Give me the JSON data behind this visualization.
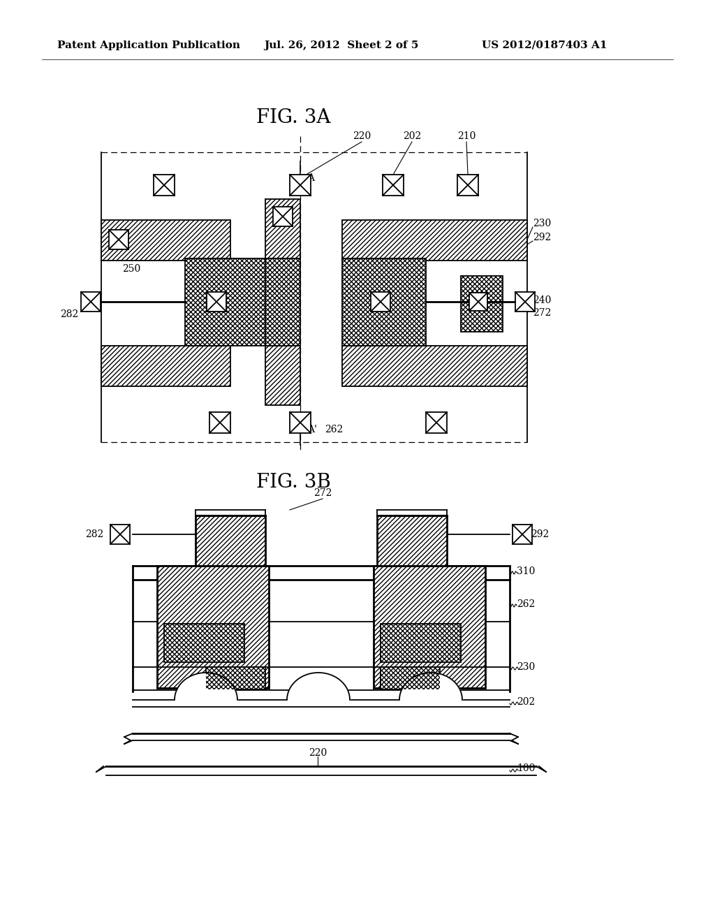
{
  "bg_color": "#ffffff",
  "header_left": "Patent Application Publication",
  "header_mid": "Jul. 26, 2012  Sheet 2 of 5",
  "header_right": "US 2012/0187403 A1",
  "fig3a_title": "FIG. 3A",
  "fig3b_title": "FIG. 3B",
  "line_color": "#000000"
}
